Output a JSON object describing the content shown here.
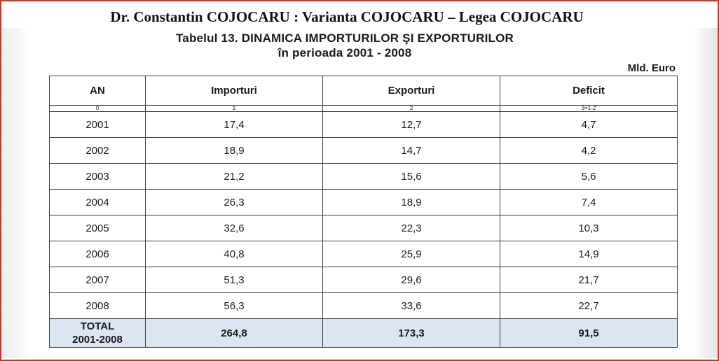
{
  "header": "Dr. Constantin COJOCARU : Varianta COJOCARU – Legea COJOCARU",
  "title_line1": "Tabelul 13.  DINAMICA IMPORTURILOR ŞI EXPORTURILOR",
  "title_line2": "în perioada 2001 - 2008",
  "unit": "Mld. Euro",
  "columns": [
    "AN",
    "Importuri",
    "Exporturi",
    "Deficit"
  ],
  "column_index": [
    "0",
    "1",
    "2",
    "3=1-2"
  ],
  "rows": [
    {
      "an": "2001",
      "importuri": "17,4",
      "exporturi": "12,7",
      "deficit": "4,7"
    },
    {
      "an": "2002",
      "importuri": "18,9",
      "exporturi": "14,7",
      "deficit": "4,2"
    },
    {
      "an": "2003",
      "importuri": "21,2",
      "exporturi": "15,6",
      "deficit": "5,6"
    },
    {
      "an": "2004",
      "importuri": "26,3",
      "exporturi": "18,9",
      "deficit": "7,4"
    },
    {
      "an": "2005",
      "importuri": "32,6",
      "exporturi": "22,3",
      "deficit": "10,3"
    },
    {
      "an": "2006",
      "importuri": "40,8",
      "exporturi": "25,9",
      "deficit": "14,9"
    },
    {
      "an": "2007",
      "importuri": "51,3",
      "exporturi": "29,6",
      "deficit": "21,7"
    },
    {
      "an": "2008",
      "importuri": "56,3",
      "exporturi": "33,6",
      "deficit": "22,7"
    }
  ],
  "total": {
    "label_line1": "TOTAL",
    "label_line2": "2001-2008",
    "importuri": "264,8",
    "exporturi": "173,3",
    "deficit": "91,5"
  },
  "colors": {
    "frame_border": "#c0392b",
    "total_row_fill": "#dce6f2",
    "table_border": "#3a3a3a"
  }
}
